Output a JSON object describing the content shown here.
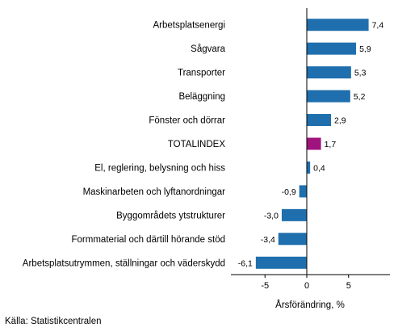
{
  "chart_data": {
    "type": "bar",
    "orientation": "horizontal",
    "categories": [
      "Arbetsplatsenergi",
      "Sågvara",
      "Transporter",
      "Beläggning",
      "Fönster och dörrar",
      "TOTALINDEX",
      "El, reglering, belysning och hiss",
      "Maskinarbeten och lyftanordningar",
      "Byggområdets ytstrukturer",
      "Formmaterial och därtill hörande stöd",
      "Arbetsplatsutrymmen, ställningar och väderskydd"
    ],
    "values": [
      7.4,
      5.9,
      5.3,
      5.2,
      2.9,
      1.7,
      0.4,
      -0.9,
      -3.0,
      -3.4,
      -6.1
    ],
    "value_labels": [
      "7,4",
      "5,9",
      "5,3",
      "5,2",
      "2,9",
      "1,7",
      "0,4",
      "-0,9",
      "-3,0",
      "-3,4",
      "-6,1"
    ],
    "highlight_category": "TOTALINDEX",
    "colors": {
      "bar": "#1f6fae",
      "highlight": "#a0137f",
      "axis": "#000000",
      "grid": "#bbbbbb"
    },
    "xlim": [
      -9,
      10
    ],
    "xticks": [
      -5,
      0,
      5
    ],
    "xtick_labels": [
      "-5",
      "0",
      "5"
    ],
    "xlabel": "Årsförändring, %",
    "grid": false
  },
  "source": "Källa: Statistikcentralen"
}
